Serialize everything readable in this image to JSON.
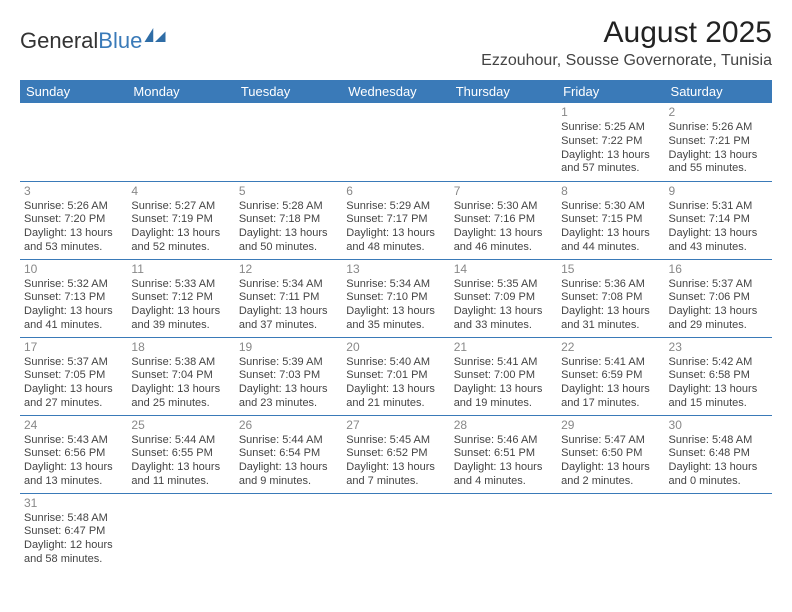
{
  "brand": {
    "part1": "General",
    "part2": "Blue"
  },
  "title": "August 2025",
  "location": "Ezzouhour, Sousse Governorate, Tunisia",
  "colors": {
    "header_bg": "#3a7ab8",
    "header_text": "#ffffff",
    "row_border": "#3a7ab8",
    "daynum": "#888888",
    "body_text": "#444444",
    "page_bg": "#ffffff",
    "brand_blue": "#3a7ab8",
    "brand_dark": "#333333"
  },
  "day_headers": [
    "Sunday",
    "Monday",
    "Tuesday",
    "Wednesday",
    "Thursday",
    "Friday",
    "Saturday"
  ],
  "weeks": [
    [
      null,
      null,
      null,
      null,
      null,
      {
        "n": "1",
        "sr": "Sunrise: 5:25 AM",
        "ss": "Sunset: 7:22 PM",
        "d1": "Daylight: 13 hours",
        "d2": "and 57 minutes."
      },
      {
        "n": "2",
        "sr": "Sunrise: 5:26 AM",
        "ss": "Sunset: 7:21 PM",
        "d1": "Daylight: 13 hours",
        "d2": "and 55 minutes."
      }
    ],
    [
      {
        "n": "3",
        "sr": "Sunrise: 5:26 AM",
        "ss": "Sunset: 7:20 PM",
        "d1": "Daylight: 13 hours",
        "d2": "and 53 minutes."
      },
      {
        "n": "4",
        "sr": "Sunrise: 5:27 AM",
        "ss": "Sunset: 7:19 PM",
        "d1": "Daylight: 13 hours",
        "d2": "and 52 minutes."
      },
      {
        "n": "5",
        "sr": "Sunrise: 5:28 AM",
        "ss": "Sunset: 7:18 PM",
        "d1": "Daylight: 13 hours",
        "d2": "and 50 minutes."
      },
      {
        "n": "6",
        "sr": "Sunrise: 5:29 AM",
        "ss": "Sunset: 7:17 PM",
        "d1": "Daylight: 13 hours",
        "d2": "and 48 minutes."
      },
      {
        "n": "7",
        "sr": "Sunrise: 5:30 AM",
        "ss": "Sunset: 7:16 PM",
        "d1": "Daylight: 13 hours",
        "d2": "and 46 minutes."
      },
      {
        "n": "8",
        "sr": "Sunrise: 5:30 AM",
        "ss": "Sunset: 7:15 PM",
        "d1": "Daylight: 13 hours",
        "d2": "and 44 minutes."
      },
      {
        "n": "9",
        "sr": "Sunrise: 5:31 AM",
        "ss": "Sunset: 7:14 PM",
        "d1": "Daylight: 13 hours",
        "d2": "and 43 minutes."
      }
    ],
    [
      {
        "n": "10",
        "sr": "Sunrise: 5:32 AM",
        "ss": "Sunset: 7:13 PM",
        "d1": "Daylight: 13 hours",
        "d2": "and 41 minutes."
      },
      {
        "n": "11",
        "sr": "Sunrise: 5:33 AM",
        "ss": "Sunset: 7:12 PM",
        "d1": "Daylight: 13 hours",
        "d2": "and 39 minutes."
      },
      {
        "n": "12",
        "sr": "Sunrise: 5:34 AM",
        "ss": "Sunset: 7:11 PM",
        "d1": "Daylight: 13 hours",
        "d2": "and 37 minutes."
      },
      {
        "n": "13",
        "sr": "Sunrise: 5:34 AM",
        "ss": "Sunset: 7:10 PM",
        "d1": "Daylight: 13 hours",
        "d2": "and 35 minutes."
      },
      {
        "n": "14",
        "sr": "Sunrise: 5:35 AM",
        "ss": "Sunset: 7:09 PM",
        "d1": "Daylight: 13 hours",
        "d2": "and 33 minutes."
      },
      {
        "n": "15",
        "sr": "Sunrise: 5:36 AM",
        "ss": "Sunset: 7:08 PM",
        "d1": "Daylight: 13 hours",
        "d2": "and 31 minutes."
      },
      {
        "n": "16",
        "sr": "Sunrise: 5:37 AM",
        "ss": "Sunset: 7:06 PM",
        "d1": "Daylight: 13 hours",
        "d2": "and 29 minutes."
      }
    ],
    [
      {
        "n": "17",
        "sr": "Sunrise: 5:37 AM",
        "ss": "Sunset: 7:05 PM",
        "d1": "Daylight: 13 hours",
        "d2": "and 27 minutes."
      },
      {
        "n": "18",
        "sr": "Sunrise: 5:38 AM",
        "ss": "Sunset: 7:04 PM",
        "d1": "Daylight: 13 hours",
        "d2": "and 25 minutes."
      },
      {
        "n": "19",
        "sr": "Sunrise: 5:39 AM",
        "ss": "Sunset: 7:03 PM",
        "d1": "Daylight: 13 hours",
        "d2": "and 23 minutes."
      },
      {
        "n": "20",
        "sr": "Sunrise: 5:40 AM",
        "ss": "Sunset: 7:01 PM",
        "d1": "Daylight: 13 hours",
        "d2": "and 21 minutes."
      },
      {
        "n": "21",
        "sr": "Sunrise: 5:41 AM",
        "ss": "Sunset: 7:00 PM",
        "d1": "Daylight: 13 hours",
        "d2": "and 19 minutes."
      },
      {
        "n": "22",
        "sr": "Sunrise: 5:41 AM",
        "ss": "Sunset: 6:59 PM",
        "d1": "Daylight: 13 hours",
        "d2": "and 17 minutes."
      },
      {
        "n": "23",
        "sr": "Sunrise: 5:42 AM",
        "ss": "Sunset: 6:58 PM",
        "d1": "Daylight: 13 hours",
        "d2": "and 15 minutes."
      }
    ],
    [
      {
        "n": "24",
        "sr": "Sunrise: 5:43 AM",
        "ss": "Sunset: 6:56 PM",
        "d1": "Daylight: 13 hours",
        "d2": "and 13 minutes."
      },
      {
        "n": "25",
        "sr": "Sunrise: 5:44 AM",
        "ss": "Sunset: 6:55 PM",
        "d1": "Daylight: 13 hours",
        "d2": "and 11 minutes."
      },
      {
        "n": "26",
        "sr": "Sunrise: 5:44 AM",
        "ss": "Sunset: 6:54 PM",
        "d1": "Daylight: 13 hours",
        "d2": "and 9 minutes."
      },
      {
        "n": "27",
        "sr": "Sunrise: 5:45 AM",
        "ss": "Sunset: 6:52 PM",
        "d1": "Daylight: 13 hours",
        "d2": "and 7 minutes."
      },
      {
        "n": "28",
        "sr": "Sunrise: 5:46 AM",
        "ss": "Sunset: 6:51 PM",
        "d1": "Daylight: 13 hours",
        "d2": "and 4 minutes."
      },
      {
        "n": "29",
        "sr": "Sunrise: 5:47 AM",
        "ss": "Sunset: 6:50 PM",
        "d1": "Daylight: 13 hours",
        "d2": "and 2 minutes."
      },
      {
        "n": "30",
        "sr": "Sunrise: 5:48 AM",
        "ss": "Sunset: 6:48 PM",
        "d1": "Daylight: 13 hours",
        "d2": "and 0 minutes."
      }
    ],
    [
      {
        "n": "31",
        "sr": "Sunrise: 5:48 AM",
        "ss": "Sunset: 6:47 PM",
        "d1": "Daylight: 12 hours",
        "d2": "and 58 minutes."
      },
      null,
      null,
      null,
      null,
      null,
      null
    ]
  ]
}
